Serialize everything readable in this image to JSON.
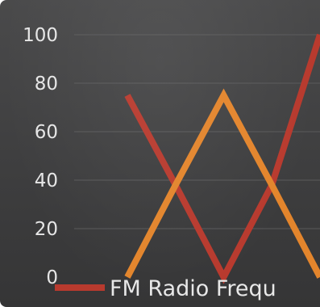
{
  "chart_data": {
    "type": "line",
    "x": [
      0,
      1,
      2,
      3,
      4
    ],
    "series": [
      {
        "name": "FM Radio Frequ",
        "color": "#b83a2e",
        "values": [
          75,
          38,
          0,
          38,
          100
        ]
      },
      {
        "name": "",
        "color": "#e3852c",
        "values": [
          0,
          38,
          75,
          38,
          0
        ]
      }
    ],
    "yticks": [
      "0",
      "20",
      "40",
      "60",
      "80",
      "100"
    ],
    "ylim": [
      0,
      100
    ],
    "xlim": [
      0,
      4
    ],
    "grid": true,
    "legend_position": "bottom",
    "title": "",
    "xlabel": "",
    "ylabel": ""
  }
}
